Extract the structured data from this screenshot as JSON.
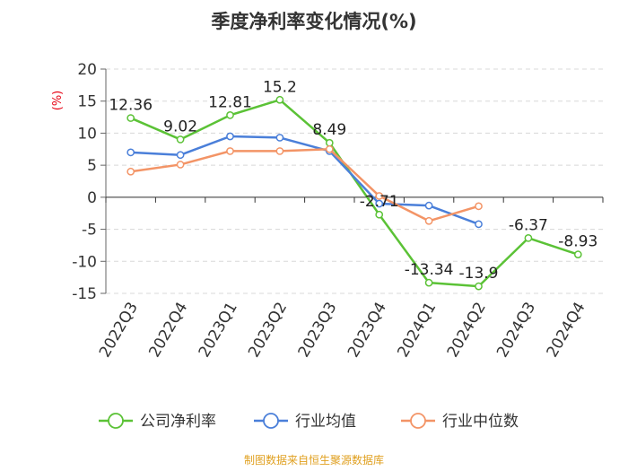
{
  "chart_data": {
    "type": "line",
    "title": "季度净利率变化情况(%)",
    "ylabel": "(%)",
    "xlabel": "",
    "ylim": [
      -15,
      20
    ],
    "yticks": [
      20,
      15,
      10,
      5,
      0,
      -5,
      -10,
      -15
    ],
    "categories": [
      "2022Q3",
      "2022Q4",
      "2023Q1",
      "2023Q2",
      "2023Q3",
      "2023Q4",
      "2024Q1",
      "2024Q2",
      "2024Q3",
      "2024Q4"
    ],
    "series": [
      {
        "name": "公司净利率",
        "color": "#5bc236",
        "values": [
          12.36,
          9.02,
          12.81,
          15.2,
          8.49,
          -2.71,
          -13.34,
          -13.9,
          -6.37,
          -8.93
        ],
        "show_labels": true
      },
      {
        "name": "行业均值",
        "color": "#4a7fd9",
        "values": [
          7.0,
          6.6,
          9.5,
          9.3,
          7.2,
          -1.0,
          -1.3,
          -4.2,
          null,
          null
        ],
        "show_labels": false
      },
      {
        "name": "行业中位数",
        "color": "#f39466",
        "values": [
          4.0,
          5.1,
          7.2,
          7.2,
          7.5,
          0.2,
          -3.7,
          -1.4,
          null,
          null
        ],
        "show_labels": false
      }
    ],
    "grid": true,
    "legend_position": "bottom"
  },
  "source_text": "制图数据来自恒生聚源数据库"
}
